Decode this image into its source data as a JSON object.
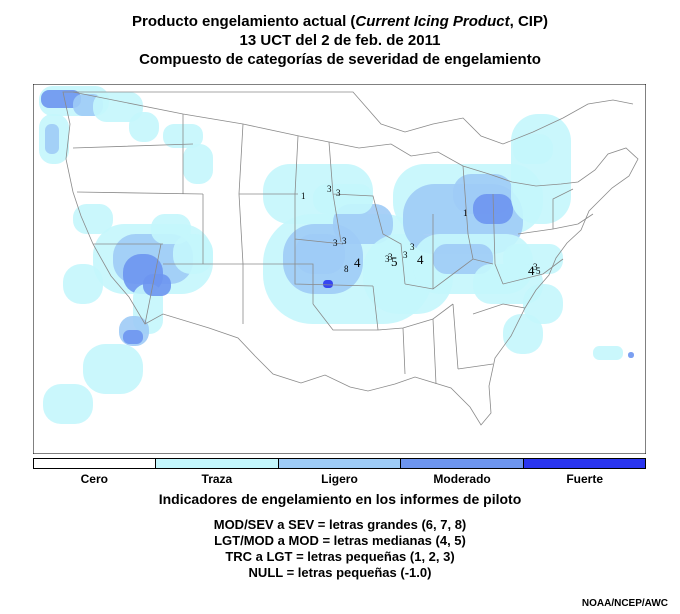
{
  "header": {
    "line1_prefix": "Producto engelamiento actual (",
    "line1_italic": "Current Icing Product",
    "line1_suffix": ", CIP)",
    "line2": "13 UCT del 2 de feb. de 2011",
    "line3": "Compuesto de categorías de severidad de engelamiento"
  },
  "legend": [
    {
      "label": "Cero",
      "color": "#ffffff"
    },
    {
      "label": "Traza",
      "color": "#c4f6fc"
    },
    {
      "label": "Ligero",
      "color": "#9ecbf6"
    },
    {
      "label": "Moderado",
      "color": "#6d95ef"
    },
    {
      "label": "Fuerte",
      "color": "#2a35ef"
    }
  ],
  "pirep": {
    "heading": "Indicadores de engelamiento en los informes de piloto",
    "lines": [
      "MOD/SEV a SEV = letras grandes (6, 7, 8)",
      "LGT/MOD a MOD = letras medianas (4, 5)",
      "TRC a LGT = letras pequeñas (1, 2, 3)",
      "NULL = letras pequeñas (-1.0)"
    ]
  },
  "pirep_markers": [
    {
      "text": "1"
    },
    {
      "text": "3"
    },
    {
      "text": "3"
    },
    {
      "text": "1"
    },
    {
      "text": "3"
    },
    {
      "text": "3"
    },
    {
      "text": "3"
    },
    {
      "text": "3"
    },
    {
      "text": "4"
    },
    {
      "text": "3"
    },
    {
      "text": "4"
    },
    {
      "text": "3"
    },
    {
      "text": "5"
    },
    {
      "text": "8"
    },
    {
      "text": "4"
    },
    {
      "text": "5"
    },
    {
      "text": "3"
    }
  ],
  "credit": "NOAA/NCEP/AWC"
}
